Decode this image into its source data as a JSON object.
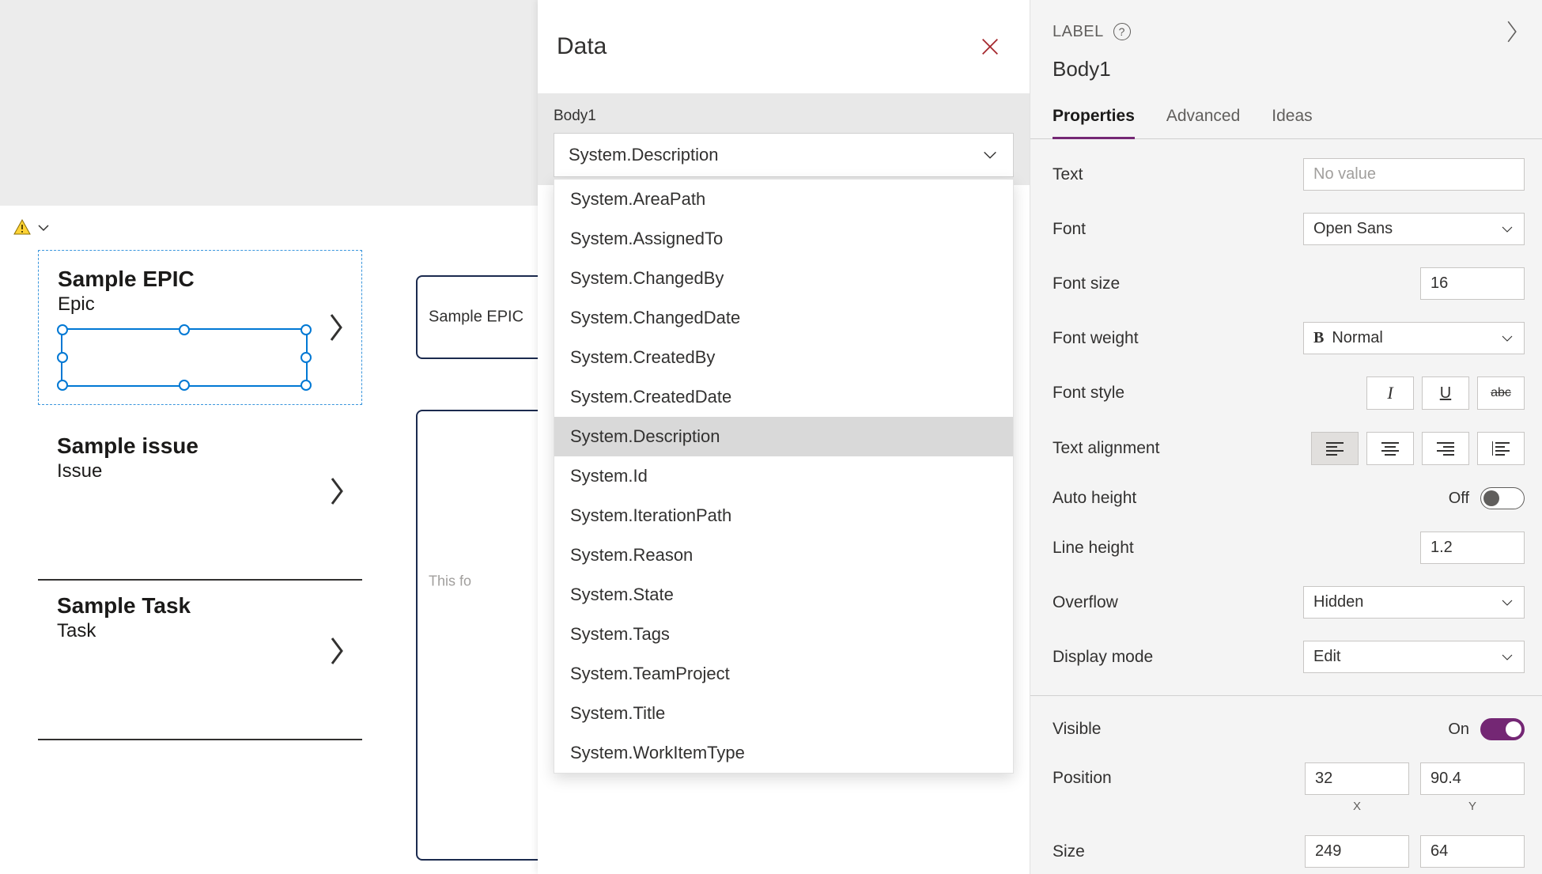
{
  "canvas": {
    "items": [
      {
        "title": "Sample EPIC",
        "subtitle": "Epic",
        "selected": true
      },
      {
        "title": "Sample issue",
        "subtitle": "Issue",
        "selected": false
      },
      {
        "title": "Sample Task",
        "subtitle": "Task",
        "selected": false
      }
    ],
    "preview_label": "Sample EPIC",
    "placeholder_text": "This fo"
  },
  "data_panel": {
    "title": "Data",
    "control_name": "Body1",
    "selected_value": "System.Description",
    "options": [
      "System.AreaPath",
      "System.AssignedTo",
      "System.ChangedBy",
      "System.ChangedDate",
      "System.CreatedBy",
      "System.CreatedDate",
      "System.Description",
      "System.Id",
      "System.IterationPath",
      "System.Reason",
      "System.State",
      "System.Tags",
      "System.TeamProject",
      "System.Title",
      "System.WorkItemType"
    ],
    "highlighted_option": "System.Description"
  },
  "props": {
    "label": "LABEL",
    "control_name": "Body1",
    "tabs": [
      "Properties",
      "Advanced",
      "Ideas"
    ],
    "active_tab": "Properties",
    "rows": {
      "text": {
        "label": "Text",
        "value": "No value"
      },
      "font": {
        "label": "Font",
        "value": "Open Sans"
      },
      "font_size": {
        "label": "Font size",
        "value": "16"
      },
      "font_weight": {
        "label": "Font weight",
        "value": "Normal"
      },
      "font_style": {
        "label": "Font style"
      },
      "text_alignment": {
        "label": "Text alignment"
      },
      "auto_height": {
        "label": "Auto height",
        "state": "Off"
      },
      "line_height": {
        "label": "Line height",
        "value": "1.2"
      },
      "overflow": {
        "label": "Overflow",
        "value": "Hidden"
      },
      "display_mode": {
        "label": "Display mode",
        "value": "Edit"
      },
      "visible": {
        "label": "Visible",
        "state": "On"
      },
      "position": {
        "label": "Position",
        "x": "32",
        "y": "90.4",
        "x_label": "X",
        "y_label": "Y"
      },
      "size": {
        "label": "Size",
        "w": "249",
        "h": "64"
      }
    }
  },
  "colors": {
    "accent_purple": "#742774",
    "selection_blue": "#0078d4",
    "close_red": "#a4262c"
  }
}
